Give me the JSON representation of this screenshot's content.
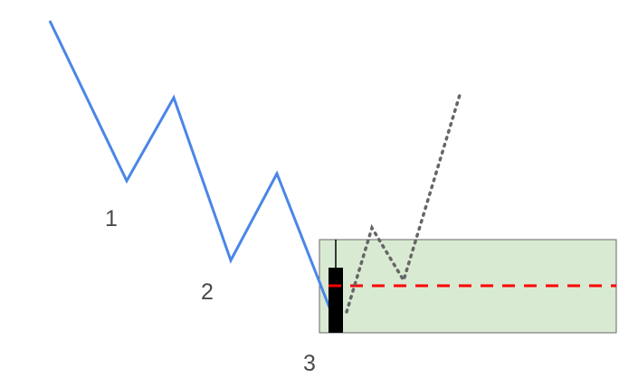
{
  "labels": {
    "wave_1": "1",
    "wave_2": "2",
    "wave_3": "3"
  },
  "colors": {
    "background": "#ffffff",
    "price_line": "#4a86e8",
    "zone_fill": "#d9ead3",
    "zone_border": "#666666",
    "candle_body": "#000000",
    "candle_wick": "#000000",
    "level_line": "#ff0000",
    "projection": "#666666",
    "label_text": "#4a4a4a"
  }
}
